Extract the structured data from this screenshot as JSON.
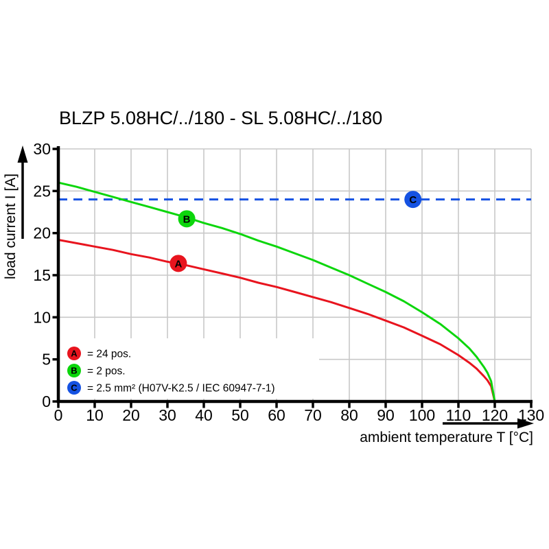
{
  "title": "BLZP 5.08HC/../180 - SL 5.08HC/../180",
  "chart_data": {
    "type": "line",
    "title": "BLZP 5.08HC/../180 - SL 5.08HC/../180",
    "xlabel": "ambient temperature T [°C]",
    "ylabel": "load current I [A]",
    "xlim": [
      0,
      130
    ],
    "ylim": [
      0,
      30
    ],
    "x_ticks": [
      0,
      10,
      20,
      30,
      40,
      50,
      60,
      70,
      80,
      90,
      100,
      110,
      120,
      130
    ],
    "y_ticks": [
      0,
      5,
      10,
      15,
      20,
      25,
      30
    ],
    "grid": true,
    "legend_position": "lower-left-inside",
    "colors": {
      "red": "#e8141e",
      "green": "#0cd60c",
      "blue": "#1552e2",
      "grid": "#c8c8c8",
      "axis": "#000000",
      "marker_text": "#ffffff"
    },
    "series": [
      {
        "id": "A",
        "legend_label": "= 24 pos.",
        "color_key": "red",
        "style": "solid",
        "x": [
          0,
          5,
          10,
          15,
          20,
          25,
          30,
          35,
          40,
          45,
          50,
          55,
          60,
          65,
          70,
          75,
          80,
          85,
          90,
          95,
          100,
          105,
          110,
          113,
          115,
          117,
          118,
          119,
          120
        ],
        "values": [
          19.2,
          18.8,
          18.4,
          18.0,
          17.5,
          17.1,
          16.6,
          16.2,
          15.7,
          15.2,
          14.7,
          14.1,
          13.6,
          13.0,
          12.4,
          11.8,
          11.1,
          10.4,
          9.6,
          8.8,
          7.8,
          6.8,
          5.5,
          4.6,
          3.9,
          3.0,
          2.5,
          1.8,
          0
        ],
        "marker": {
          "x": 33,
          "y": 16.4,
          "letter": "A"
        }
      },
      {
        "id": "B",
        "legend_label": "= 2 pos.",
        "color_key": "green",
        "style": "solid",
        "x": [
          0,
          5,
          10,
          15,
          20,
          25,
          30,
          35,
          40,
          45,
          50,
          55,
          60,
          65,
          70,
          75,
          80,
          85,
          90,
          95,
          100,
          105,
          110,
          113,
          115,
          117,
          118,
          119,
          120
        ],
        "values": [
          26.0,
          25.5,
          24.9,
          24.3,
          23.7,
          23.1,
          22.5,
          21.9,
          21.2,
          20.6,
          19.9,
          19.1,
          18.4,
          17.6,
          16.8,
          15.9,
          15.0,
          14.0,
          13.0,
          11.9,
          10.6,
          9.2,
          7.5,
          6.3,
          5.3,
          4.1,
          3.4,
          2.4,
          0
        ],
        "marker": {
          "x": 35.3,
          "y": 21.7,
          "letter": "B"
        }
      },
      {
        "id": "C",
        "legend_label": "= 2.5 mm² (H07V-K2.5 / IEC 60947-7-1)",
        "color_key": "blue",
        "style": "dashed",
        "x": [
          0,
          130
        ],
        "values": [
          24,
          24
        ],
        "marker": {
          "x": 97.5,
          "y": 24,
          "letter": "C"
        }
      }
    ]
  }
}
